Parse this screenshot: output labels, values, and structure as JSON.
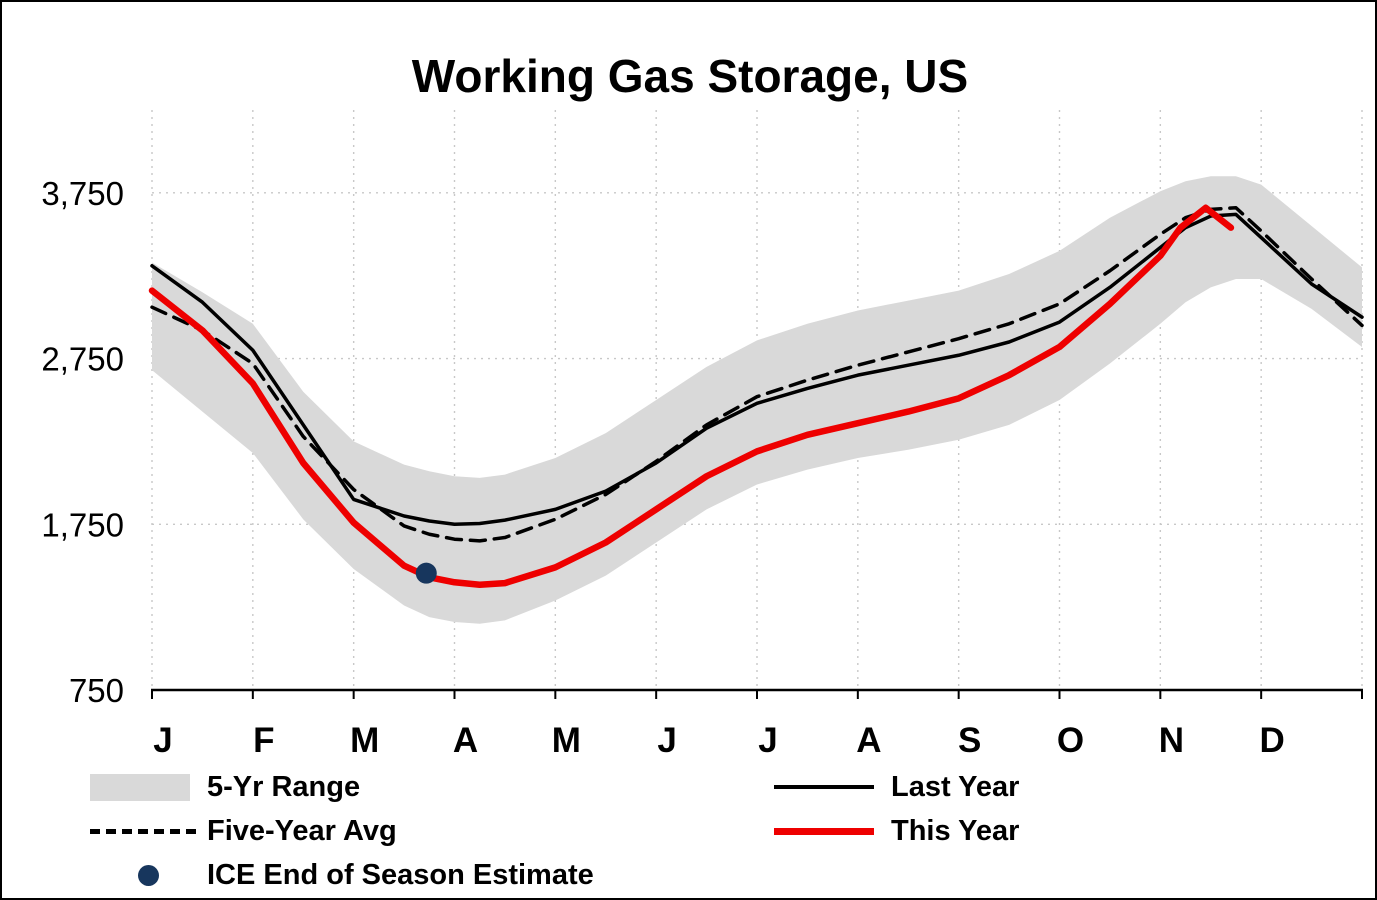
{
  "title": "Working Gas Storage, US",
  "chart_data": {
    "type": "line",
    "title": "Working Gas Storage, US",
    "xlabel": "",
    "ylabel": "",
    "unit_hint": "Bcf",
    "ylim": [
      750,
      4250
    ],
    "yticks": [
      750,
      1750,
      2750,
      3750
    ],
    "month_labels": [
      "J",
      "F",
      "M",
      "A",
      "M",
      "J",
      "J",
      "A",
      "S",
      "O",
      "N",
      "D"
    ],
    "grid": true,
    "legend_position": "bottom",
    "band": {
      "name": "5-Yr Range",
      "color": "#d9d9d9",
      "x": [
        0,
        0.5,
        1,
        1.5,
        2,
        2.5,
        2.75,
        3,
        3.25,
        3.5,
        4,
        4.5,
        5,
        5.5,
        6,
        6.5,
        7,
        7.5,
        8,
        8.5,
        9,
        9.5,
        10,
        10.25,
        10.5,
        10.75,
        11,
        11.5,
        12
      ],
      "upper": [
        3330,
        3150,
        2960,
        2550,
        2250,
        2110,
        2070,
        2040,
        2030,
        2050,
        2150,
        2300,
        2500,
        2700,
        2860,
        2960,
        3040,
        3100,
        3160,
        3260,
        3400,
        3600,
        3760,
        3820,
        3850,
        3850,
        3800,
        3550,
        3300
      ],
      "lower": [
        2680,
        2430,
        2180,
        1780,
        1480,
        1260,
        1190,
        1160,
        1150,
        1170,
        1290,
        1440,
        1640,
        1840,
        1990,
        2080,
        2150,
        2200,
        2260,
        2350,
        2500,
        2720,
        2960,
        3090,
        3180,
        3230,
        3230,
        3050,
        2820
      ]
    },
    "series": [
      {
        "name": "Five-Year Avg",
        "color": "#000000",
        "style": "dashed",
        "width": 3.5,
        "x": [
          0,
          0.5,
          1,
          1.5,
          2,
          2.5,
          2.75,
          3,
          3.25,
          3.5,
          4,
          4.5,
          5,
          5.5,
          6,
          6.5,
          7,
          7.5,
          8,
          8.5,
          9,
          9.5,
          10,
          10.25,
          10.5,
          10.75,
          11,
          11.5,
          12
        ],
        "values": [
          3060,
          2920,
          2720,
          2280,
          1960,
          1740,
          1690,
          1660,
          1650,
          1670,
          1780,
          1930,
          2130,
          2350,
          2520,
          2620,
          2710,
          2790,
          2870,
          2960,
          3080,
          3280,
          3500,
          3600,
          3650,
          3660,
          3520,
          3230,
          2950
        ]
      },
      {
        "name": "Last Year",
        "color": "#000000",
        "style": "solid",
        "width": 3.5,
        "x": [
          0,
          0.5,
          1,
          1.5,
          2,
          2.5,
          2.75,
          3,
          3.25,
          3.5,
          4,
          4.5,
          5,
          5.5,
          6,
          6.5,
          7,
          7.5,
          8,
          8.5,
          9,
          9.5,
          10,
          10.25,
          10.5,
          10.75,
          11,
          11.5,
          12
        ],
        "values": [
          3310,
          3090,
          2800,
          2350,
          1900,
          1800,
          1770,
          1750,
          1755,
          1775,
          1840,
          1950,
          2120,
          2330,
          2480,
          2570,
          2650,
          2710,
          2770,
          2850,
          2970,
          3180,
          3420,
          3540,
          3610,
          3620,
          3480,
          3200,
          3000
        ]
      },
      {
        "name": "This Year",
        "color": "#ee0000",
        "style": "solid",
        "width": 6.5,
        "x": [
          0,
          0.5,
          1,
          1.5,
          2,
          2.5,
          2.75,
          3,
          3.25,
          3.5,
          4,
          4.5,
          5,
          5.5,
          6,
          6.5,
          7,
          7.5,
          8,
          8.5,
          9,
          9.5,
          10,
          10.2,
          10.45,
          10.7
        ],
        "values": [
          3160,
          2920,
          2600,
          2120,
          1760,
          1500,
          1430,
          1400,
          1385,
          1395,
          1490,
          1640,
          1840,
          2040,
          2190,
          2290,
          2360,
          2430,
          2510,
          2650,
          2820,
          3080,
          3370,
          3540,
          3660,
          3540
        ]
      }
    ],
    "point": {
      "name": "ICE End of Season Estimate",
      "color": "#17365d",
      "x": 2.72,
      "value": 1455
    }
  },
  "legend": {
    "range_label": "5-Yr Range",
    "avg_label": "Five-Year Avg",
    "ice_label": "ICE End of Season Estimate",
    "last_label": "Last Year",
    "this_label": "This Year"
  }
}
